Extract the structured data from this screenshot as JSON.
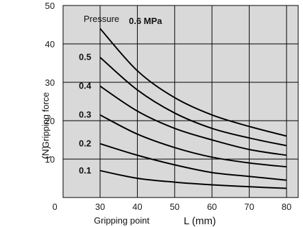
{
  "chart_data": {
    "type": "line",
    "title": "",
    "xlabel": "Gripping point",
    "xlabel_unit": "L (mm)",
    "ylabel": "Gripping force",
    "ylabel_unit": "(N)",
    "x_ticks": [
      "0",
      "30",
      "40",
      "50",
      "60",
      "70",
      "80"
    ],
    "y_ticks": [
      "10",
      "20",
      "30",
      "40",
      "50"
    ],
    "xlim": [
      20,
      83
    ],
    "ylim": [
      0,
      50
    ],
    "grid": true,
    "legend_title": "Pressure",
    "legend": "inline labels at left end of each curve",
    "series": [
      {
        "name": "0.6 MPa",
        "x": [
          30,
          40,
          50,
          60,
          70,
          80
        ],
        "y": [
          44,
          33,
          26,
          21.5,
          18.5,
          16
        ]
      },
      {
        "name": "0.5",
        "x": [
          30,
          40,
          50,
          60,
          70,
          80
        ],
        "y": [
          36.5,
          28,
          22,
          18,
          15.5,
          13.5
        ]
      },
      {
        "name": "0.4",
        "x": [
          30,
          40,
          50,
          60,
          70,
          80
        ],
        "y": [
          29,
          22.5,
          18,
          15,
          12.5,
          11
        ]
      },
      {
        "name": "0.3",
        "x": [
          30,
          40,
          50,
          60,
          70,
          80
        ],
        "y": [
          21.5,
          16.5,
          13,
          10.5,
          9,
          8
        ]
      },
      {
        "name": "0.2",
        "x": [
          30,
          40,
          50,
          60,
          70,
          80
        ],
        "y": [
          14,
          11,
          8.5,
          6.5,
          5.5,
          4.5
        ]
      },
      {
        "name": "0.1",
        "x": [
          30,
          40,
          50,
          60,
          70,
          80
        ],
        "y": [
          7,
          5,
          4,
          3.3,
          2.8,
          2.4
        ]
      }
    ]
  }
}
